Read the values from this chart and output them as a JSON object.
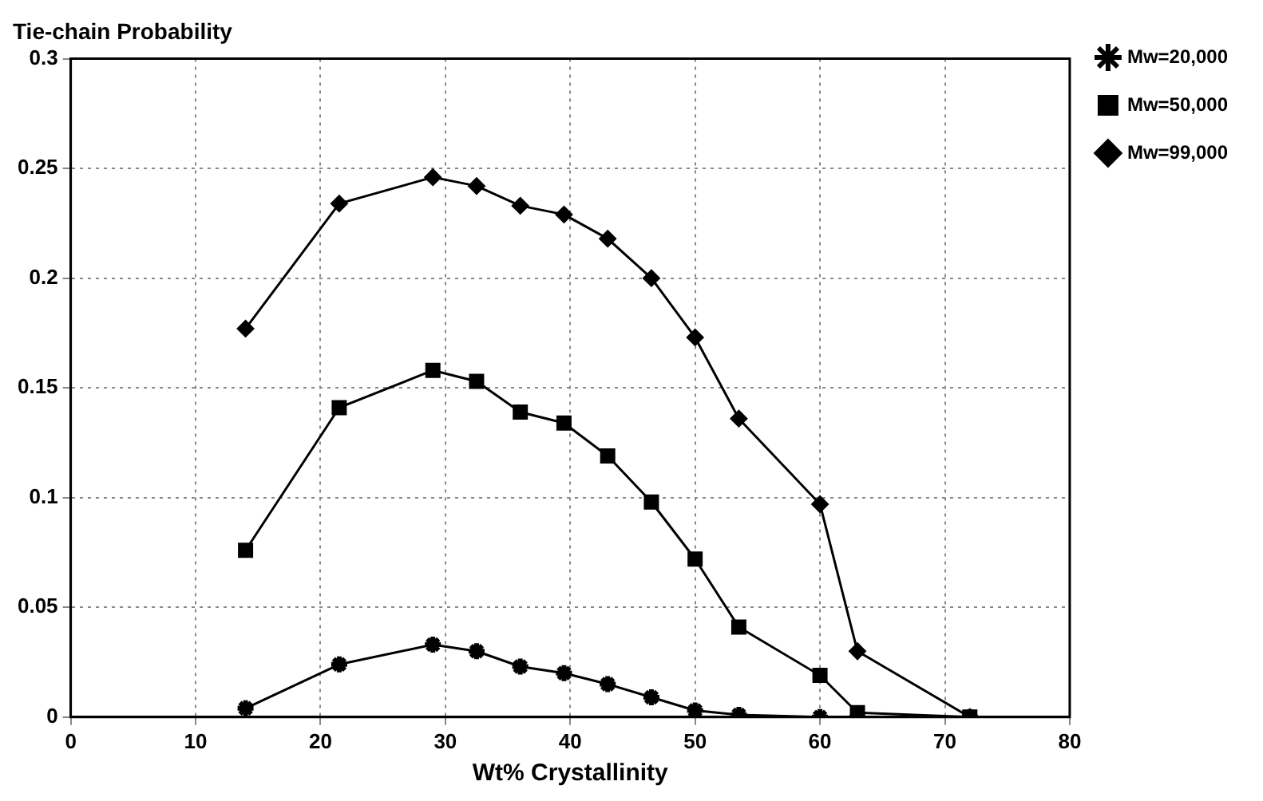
{
  "chart_data": {
    "type": "line",
    "ylabel": "Tie-chain Probability",
    "xlabel": "Wt% Crystallinity",
    "x": [
      14,
      21.5,
      29,
      32.5,
      36,
      39.5,
      43,
      46.5,
      50,
      53.5,
      60,
      63,
      72
    ],
    "xlim": [
      0,
      80
    ],
    "xticks": [
      0,
      10,
      20,
      30,
      40,
      50,
      60,
      70,
      80
    ],
    "ylim": [
      0,
      0.3
    ],
    "yticks": [
      0,
      0.05,
      0.1,
      0.15,
      0.2,
      0.25,
      0.3
    ],
    "grid": true,
    "legend": "right",
    "line_style": "solid",
    "series": [
      {
        "name": "Mw=20,000",
        "color": "#000000",
        "marker": "cross",
        "values": [
          0.004,
          0.024,
          0.033,
          0.03,
          0.023,
          0.02,
          0.015,
          0.009,
          0.003,
          0.001,
          0,
          0,
          0
        ]
      },
      {
        "name": "Mw=50,000",
        "color": "#000000",
        "marker": "square",
        "values": [
          0.076,
          0.141,
          0.158,
          0.153,
          0.139,
          0.134,
          0.119,
          0.098,
          0.072,
          0.041,
          0.019,
          0.002,
          0
        ]
      },
      {
        "name": "Mw=99,000",
        "color": "#000000",
        "marker": "diamond",
        "values": [
          0.177,
          0.234,
          0.246,
          0.242,
          0.233,
          0.229,
          0.218,
          0.2,
          0.173,
          0.136,
          0.097,
          0.03,
          0
        ]
      }
    ]
  }
}
